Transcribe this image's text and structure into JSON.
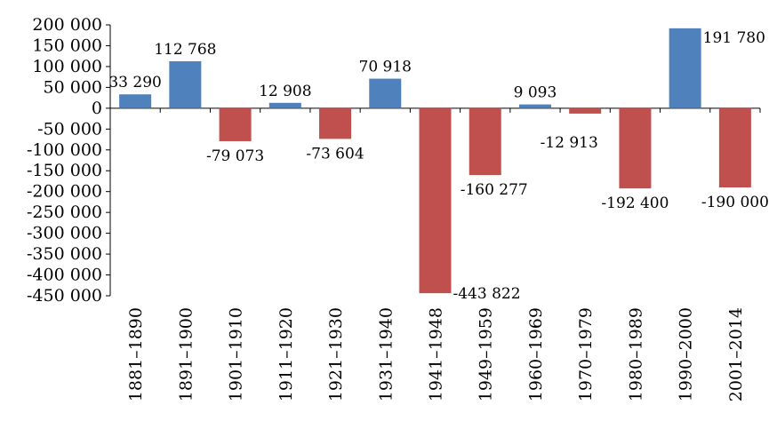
{
  "chart_data": {
    "type": "bar",
    "title": "",
    "xlabel": "",
    "ylabel": "",
    "ylim": [
      -450000,
      200000
    ],
    "ytick_step": 50000,
    "grid": false,
    "legend": "none",
    "categories": [
      "1881–1890",
      "1891–1900",
      "1901–1910",
      "1911–1920",
      "1921–1930",
      "1931–1940",
      "1941–1948",
      "1949–1959",
      "1960–1969",
      "1970–1979",
      "1980–1989",
      "1990–2000",
      "2001–2014"
    ],
    "values": [
      33290,
      112768,
      -79073,
      12908,
      -73604,
      70918,
      -443822,
      -160277,
      9093,
      -12913,
      -192400,
      191780,
      -190000
    ],
    "data_labels": [
      "33 290",
      "112 768",
      "-79 073",
      "12 908",
      "-73 604",
      "70 918",
      "-443 822",
      "-160 277",
      "9 093",
      "-12 913",
      "-192 400",
      "191 780",
      "-190 000"
    ],
    "y_tick_labels": [
      "200 000",
      "150 000",
      "100 000",
      "50 000",
      "0",
      "-50 000",
      "-100 000",
      "-150 000",
      "-200 000",
      "-250 000",
      "-300 000",
      "-350 000",
      "-400 000",
      "-450 000"
    ],
    "colors": {
      "positive": "#4F81BD",
      "negative": "#C0504D",
      "axis": "#000000"
    }
  }
}
